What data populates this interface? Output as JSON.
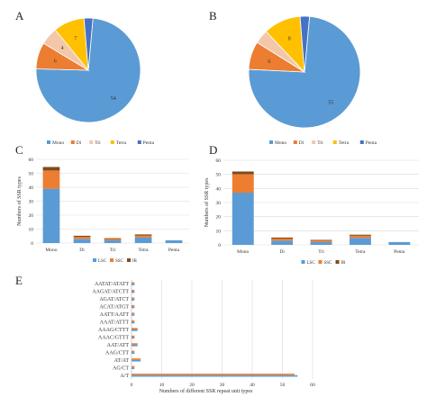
{
  "chart_data": [
    {
      "panel": "A",
      "type": "pie",
      "labels": [
        "Mono",
        "Di",
        "Tri",
        "Tetra",
        "Penta"
      ],
      "values": [
        54,
        6,
        4,
        7,
        2
      ],
      "value_labels": [
        "54",
        "6",
        "4",
        "7",
        ""
      ],
      "colors": [
        "#5b9bd5",
        "#ed7d31",
        "#f4c7a8",
        "#ffc000",
        "#4472c4"
      ],
      "legend_position": "bottom"
    },
    {
      "panel": "B",
      "type": "pie",
      "labels": [
        "Mono",
        "Di",
        "Tri",
        "Tetra",
        "Penta"
      ],
      "values": [
        55,
        6,
        3,
        8,
        2
      ],
      "value_labels": [
        "55",
        "6",
        "",
        "8",
        ""
      ],
      "colors": [
        "#5b9bd5",
        "#ed7d31",
        "#f4c7a8",
        "#ffc000",
        "#4472c4"
      ],
      "legend_position": "bottom"
    },
    {
      "panel": "C",
      "type": "bar",
      "stacked": true,
      "categories": [
        "Mono",
        "Di",
        "Tri",
        "Tetra",
        "Penta"
      ],
      "series": [
        {
          "name": "LSC",
          "values": [
            39,
            3,
            2,
            4,
            2
          ],
          "color": "#5b9bd5"
        },
        {
          "name": "SSC",
          "values": [
            13,
            1.5,
            1,
            1.5,
            0
          ],
          "color": "#ed7d31"
        },
        {
          "name": "IR",
          "values": [
            2.5,
            0.7,
            0.5,
            0.7,
            0
          ],
          "color": "#7f4a1d"
        }
      ],
      "ylabel": "Numbers of SSR types",
      "yticks": [
        0,
        10,
        20,
        30,
        40,
        50,
        60
      ],
      "ylim": [
        0,
        60
      ],
      "grid": true,
      "legend_position": "bottom"
    },
    {
      "panel": "D",
      "type": "bar",
      "stacked": true,
      "categories": [
        "Mono",
        "Di",
        "Tri",
        "Tetra",
        "Penta"
      ],
      "series": [
        {
          "name": "LSC",
          "values": [
            37,
            3,
            2,
            5,
            2
          ],
          "color": "#5b9bd5"
        },
        {
          "name": "SSC",
          "values": [
            13,
            1.5,
            1,
            1.5,
            0
          ],
          "color": "#ed7d31"
        },
        {
          "name": "IR",
          "values": [
            2,
            0.7,
            0.5,
            0.7,
            0
          ],
          "color": "#7f4a1d"
        }
      ],
      "ylabel": "Numbers of SSR types",
      "yticks": [
        0,
        10,
        20,
        30,
        40,
        50,
        60
      ],
      "ylim": [
        0,
        60
      ],
      "grid": true,
      "legend_position": "bottom"
    },
    {
      "panel": "E",
      "type": "bar",
      "orientation": "horizontal",
      "categories": [
        "AATAT/ATATT",
        "AAGAT/ATCTT",
        "AGAT/ATCT",
        "ACAT/ATGT",
        "AATT/AATT",
        "AAAT/ATTT",
        "AAAG/CTTT",
        "AAAC/GTTT",
        "AAT/ATT",
        "AAG/CTT",
        "AT/AT",
        "AG/CT",
        "A/T"
      ],
      "series": [
        {
          "name": "",
          "values": [
            1,
            1,
            1,
            1,
            1,
            1,
            2,
            1,
            2,
            1,
            3,
            1,
            54
          ],
          "color": "#ed7d31"
        },
        {
          "name": "",
          "values": [
            1,
            1,
            1,
            1,
            1,
            1,
            2,
            1,
            2,
            1,
            3,
            1,
            55
          ],
          "color": "#5b9bd5"
        }
      ],
      "xlabel": "Numbers of different SSR repeat unit types",
      "xticks": [
        0,
        10,
        20,
        30,
        40,
        50,
        60
      ],
      "xlim": [
        0,
        60
      ],
      "grid": true
    }
  ]
}
